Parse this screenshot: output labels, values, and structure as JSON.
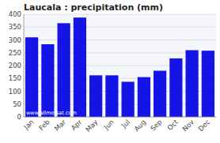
{
  "chart_data": {
    "type": "bar",
    "title": "Laucala : precipitation (mm)",
    "categories": [
      "Jan",
      "Feb",
      "Mar",
      "Apr",
      "May",
      "Jun",
      "Jul",
      "Aug",
      "Sep",
      "Oct",
      "Nov",
      "Dec"
    ],
    "values": [
      310,
      283,
      365,
      387,
      162,
      162,
      137,
      155,
      180,
      228,
      260,
      258
    ],
    "color": "#1414e6",
    "ylim": [
      0,
      400
    ],
    "yticks": [
      0,
      50,
      100,
      150,
      200,
      250,
      300,
      350,
      400
    ],
    "grid": true,
    "annotations": [
      "www.allmetsat.com"
    ]
  }
}
